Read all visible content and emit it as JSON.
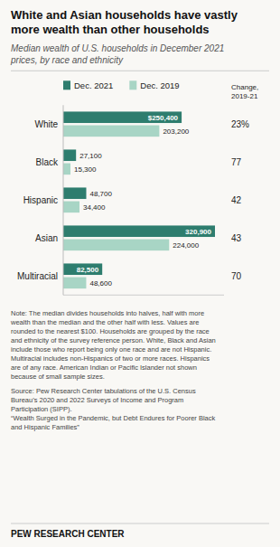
{
  "chart_data": {
    "type": "bar",
    "orientation": "horizontal",
    "title": "White and Asian households have vastly\nmore wealth than other households",
    "subtitle": "Median wealth of U.S. households in December 2021\nprices, by race and ethnicity",
    "categories": [
      "White",
      "Black",
      "Hispanic",
      "Asian",
      "Multiracial"
    ],
    "series": [
      {
        "name": "Dec. 2021",
        "color": "#2e7d6e",
        "values": [
          250400,
          27100,
          48700,
          320900,
          82500
        ],
        "value_labels": [
          "$250,400",
          "27,100",
          "48,700",
          "320,900",
          "82,500"
        ]
      },
      {
        "name": "Dec. 2019",
        "color": "#a8d5c5",
        "values": [
          203200,
          15300,
          34400,
          224000,
          48600
        ],
        "value_labels": [
          "203,200",
          "15,300",
          "34,400",
          "224,000",
          "48,600"
        ]
      }
    ],
    "xlim": [
      0,
      340000
    ],
    "data_labels": true,
    "tick_labels": "y",
    "grid": false,
    "legend": "top",
    "annotations": [
      "Change,\n2019-21",
      "23%",
      "77",
      "42",
      "43",
      "70",
      "Note: The median divides households into halves, half with more\nwealth than the median and the other half with less. Values are\nrounded to the nearest $100. Households are grouped by the race\nand ethnicity of the survey reference person. White, Black and Asian\ninclude those who report being only one race and are not Hispanic.\nMultiracial includes non-Hispanics of two or more races. Hispanics\nare of any race. American Indian or Pacific Islander not shown\nbecause of small sample sizes.",
      "Source: Pew Research Center tabulations of the U.S. Census\nBureau’s 2020 and 2022 Surveys of Income and Program\nParticipation (SIPP).\n“Wealth Surged in the Pandemic, but Debt Endures for Poorer Black\nand Hispanic Families”",
      "PEW RESEARCH CENTER"
    ]
  }
}
